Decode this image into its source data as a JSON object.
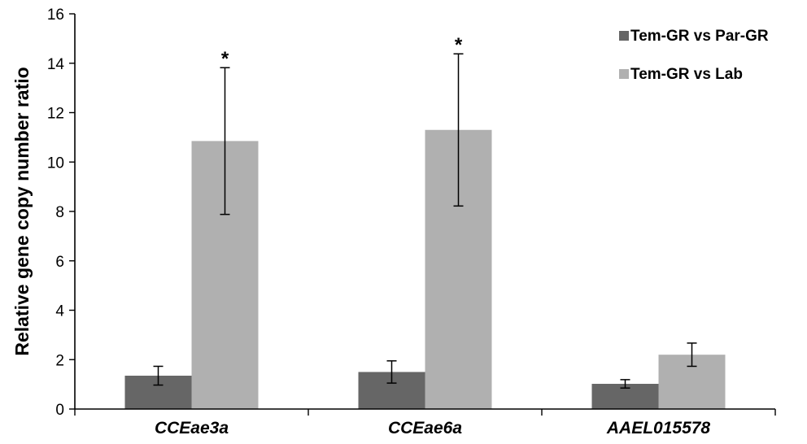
{
  "chart_data": {
    "type": "bar",
    "title": "",
    "xlabel": "",
    "ylabel": "Relative gene copy number ratio",
    "ylim": [
      0,
      16
    ],
    "yticks": [
      0,
      2,
      4,
      6,
      8,
      10,
      12,
      14,
      16
    ],
    "categories": [
      "CCEae3a",
      "CCEae6a",
      "AAEL015578"
    ],
    "legend_position": "top-right",
    "grid": false,
    "series": [
      {
        "name": "Tem-GR vs Par-GR",
        "color": "#666666",
        "values": [
          1.35,
          1.5,
          1.02
        ],
        "errors": [
          0.38,
          0.45,
          0.17
        ]
      },
      {
        "name": "Tem-GR vs Lab",
        "color": "#b0b0b0",
        "values": [
          10.85,
          11.3,
          2.2
        ],
        "errors": [
          2.97,
          3.08,
          0.47
        ]
      }
    ],
    "annotations": [
      {
        "category": "CCEae3a",
        "series": 1,
        "text": "*"
      },
      {
        "category": "CCEae6a",
        "series": 1,
        "text": "*"
      }
    ]
  }
}
